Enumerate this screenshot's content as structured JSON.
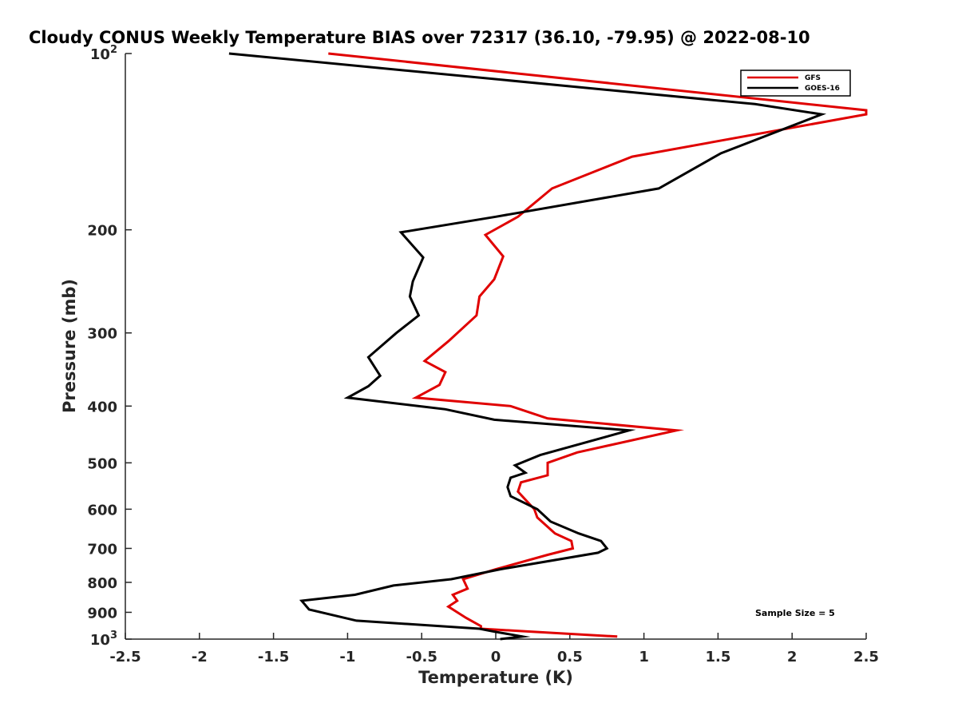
{
  "chart_data": {
    "type": "line",
    "title": "Cloudy CONUS Weekly Temperature BIAS over 72317 (36.10, -79.95) @ 2022-08-10",
    "xlabel": "Temperature (K)",
    "ylabel": "Pressure (mb)",
    "xlim": [
      -2.5,
      2.5
    ],
    "ylim": [
      100,
      1000
    ],
    "y_scale": "log",
    "y_reversed": true,
    "grid": false,
    "x_ticks": [
      -2.5,
      -2,
      -1.5,
      -1,
      -0.5,
      0,
      0.5,
      1,
      1.5,
      2,
      2.5
    ],
    "x_tick_labels": [
      "-2.5",
      "-2",
      "-1.5",
      "-1",
      "-0.5",
      "0",
      "0.5",
      "1",
      "1.5",
      "2",
      "2.5"
    ],
    "y_ticks": [
      100,
      200,
      300,
      400,
      500,
      600,
      700,
      800,
      900,
      1000
    ],
    "y_tick_labels": [
      {
        "base": "10",
        "sup": "2"
      },
      {
        "base": "200",
        "sup": ""
      },
      {
        "base": "300",
        "sup": ""
      },
      {
        "base": "400",
        "sup": ""
      },
      {
        "base": "500",
        "sup": ""
      },
      {
        "base": "600",
        "sup": ""
      },
      {
        "base": "700",
        "sup": ""
      },
      {
        "base": "800",
        "sup": ""
      },
      {
        "base": "900",
        "sup": ""
      },
      {
        "base": "10",
        "sup": "3"
      }
    ],
    "legend_position": "top-right",
    "annotation": "Sample Size = 5",
    "series": [
      {
        "name": "GFS",
        "color": "#e00000",
        "points": [
          [
            -1.13,
            100
          ],
          [
            2.5,
            125
          ],
          [
            2.5,
            127
          ],
          [
            0.92,
            150
          ],
          [
            0.38,
            170
          ],
          [
            0.15,
            190
          ],
          [
            -0.07,
            204
          ],
          [
            0.05,
            222
          ],
          [
            -0.01,
            243
          ],
          [
            -0.11,
            260
          ],
          [
            -0.13,
            280
          ],
          [
            -0.32,
            310
          ],
          [
            -0.48,
            335
          ],
          [
            -0.34,
            350
          ],
          [
            -0.38,
            368
          ],
          [
            -0.54,
            387
          ],
          [
            0.1,
            400
          ],
          [
            0.35,
            420
          ],
          [
            1.22,
            440
          ],
          [
            0.55,
            480
          ],
          [
            0.35,
            500
          ],
          [
            0.35,
            525
          ],
          [
            0.17,
            540
          ],
          [
            0.15,
            560
          ],
          [
            0.26,
            600
          ],
          [
            0.28,
            620
          ],
          [
            0.4,
            660
          ],
          [
            0.51,
            680
          ],
          [
            0.52,
            700
          ],
          [
            0.35,
            718
          ],
          [
            0.0,
            760
          ],
          [
            -0.22,
            790
          ],
          [
            -0.19,
            820
          ],
          [
            -0.29,
            840
          ],
          [
            -0.26,
            860
          ],
          [
            -0.32,
            880
          ],
          [
            -0.2,
            920
          ],
          [
            -0.1,
            950
          ],
          [
            -0.1,
            960
          ],
          [
            0.2,
            970
          ],
          [
            0.82,
            990
          ]
        ]
      },
      {
        "name": "GOES-16",
        "color": "#000000",
        "points": [
          [
            -1.8,
            100
          ],
          [
            1.75,
            122
          ],
          [
            2.2,
            127
          ],
          [
            1.52,
            148
          ],
          [
            1.1,
            170
          ],
          [
            0.0,
            190
          ],
          [
            -0.64,
            202
          ],
          [
            -0.49,
            223
          ],
          [
            -0.56,
            245
          ],
          [
            -0.58,
            260
          ],
          [
            -0.52,
            280
          ],
          [
            -0.67,
            300
          ],
          [
            -0.86,
            330
          ],
          [
            -0.78,
            355
          ],
          [
            -0.86,
            370
          ],
          [
            -1.0,
            387
          ],
          [
            -0.34,
            405
          ],
          [
            -0.01,
            422
          ],
          [
            0.9,
            440
          ],
          [
            0.3,
            485
          ],
          [
            0.13,
            505
          ],
          [
            0.2,
            520
          ],
          [
            0.1,
            530
          ],
          [
            0.08,
            550
          ],
          [
            0.1,
            570
          ],
          [
            0.28,
            600
          ],
          [
            0.37,
            630
          ],
          [
            0.56,
            660
          ],
          [
            0.71,
            680
          ],
          [
            0.75,
            700
          ],
          [
            0.69,
            712
          ],
          [
            0.03,
            760
          ],
          [
            -0.3,
            790
          ],
          [
            -0.69,
            810
          ],
          [
            -0.95,
            840
          ],
          [
            -1.31,
            860
          ],
          [
            -1.26,
            890
          ],
          [
            -0.94,
            930
          ],
          [
            -0.11,
            960
          ],
          [
            -0.02,
            970
          ],
          [
            0.18,
            990
          ],
          [
            0.03,
            1000
          ]
        ]
      }
    ]
  }
}
